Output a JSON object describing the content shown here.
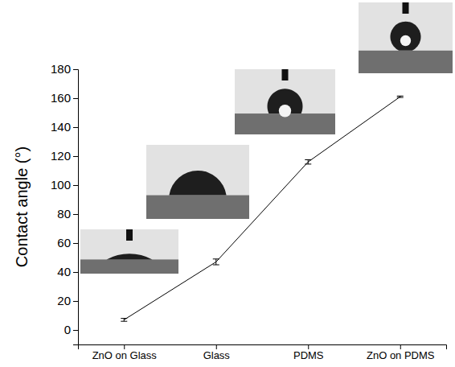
{
  "chart_data": {
    "type": "line",
    "y_label": "Contact angle (°)",
    "categories": [
      "ZnO on Glass",
      "Glass",
      "PDMS",
      "ZnO on PDMS"
    ],
    "values": [
      7,
      47,
      116,
      161
    ],
    "errors": [
      1,
      2,
      1.5,
      0.5
    ],
    "color": "#000000",
    "line_style": "solid",
    "ylim": [
      -10,
      180
    ],
    "yticks": [
      0,
      20,
      40,
      60,
      80,
      100,
      120,
      140,
      160,
      180
    ],
    "grid": false
  }
}
